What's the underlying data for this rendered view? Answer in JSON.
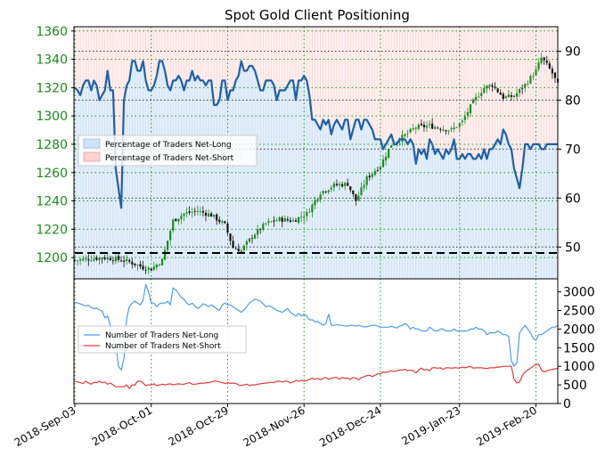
{
  "chart_data": {
    "title": "Spot Gold Client Positioning",
    "type": "line",
    "x_tick_labels": [
      "2018-Sep-03",
      "2018-Oct-01",
      "2018-Oct-29",
      "2018-Nov-26",
      "2018-Dec-24",
      "2019-Jan-23",
      "2019-Feb-20"
    ],
    "upper": {
      "price_axis": {
        "side": "left",
        "ylim": [
          1185,
          1363
        ],
        "ticks": [
          "1200",
          "1220",
          "1240",
          "1260",
          "1280",
          "1300",
          "1320",
          "1340",
          "1360"
        ]
      },
      "pct_axis": {
        "side": "right",
        "ylim": [
          43.5,
          95
        ],
        "ticks": [
          "50",
          "60",
          "70",
          "80",
          "90"
        ]
      },
      "reference_line": 50,
      "legend": {
        "placement": "upper-left",
        "entries": [
          "Percentage of Traders Net-Long",
          "Percentage of Traders Net-Short"
        ]
      },
      "price_series": {
        "name": "Spot Gold",
        "type": "candlestick",
        "approx_close_path": [
          [
            0,
            1198
          ],
          [
            5,
            1199
          ],
          [
            10,
            1200
          ],
          [
            15,
            1199
          ],
          [
            20,
            1197
          ],
          [
            25,
            1193
          ],
          [
            28,
            1192
          ],
          [
            32,
            1198
          ],
          [
            36,
            1226
          ],
          [
            40,
            1231
          ],
          [
            45,
            1233
          ],
          [
            50,
            1230
          ],
          [
            55,
            1223
          ],
          [
            58,
            1207
          ],
          [
            61,
            1205
          ],
          [
            65,
            1215
          ],
          [
            70,
            1224
          ],
          [
            75,
            1227
          ],
          [
            80,
            1226
          ],
          [
            85,
            1231
          ],
          [
            90,
            1246
          ],
          [
            95,
            1251
          ],
          [
            100,
            1252
          ],
          [
            103,
            1240
          ],
          [
            107,
            1256
          ],
          [
            112,
            1265
          ],
          [
            116,
            1280
          ],
          [
            120,
            1285
          ],
          [
            125,
            1292
          ],
          [
            130,
            1293
          ],
          [
            135,
            1291
          ],
          [
            138,
            1290
          ],
          [
            142,
            1296
          ],
          [
            146,
            1310
          ],
          [
            150,
            1320
          ],
          [
            153,
            1322
          ],
          [
            157,
            1313
          ],
          [
            161,
            1314
          ],
          [
            165,
            1322
          ],
          [
            169,
            1332
          ],
          [
            171,
            1341
          ],
          [
            173,
            1336
          ],
          [
            175,
            1330
          ],
          [
            177,
            1322
          ]
        ]
      },
      "pct_net_long": {
        "name": "Percentage of Traders Net-Long",
        "x": [
          0,
          1,
          2,
          3,
          4,
          5,
          6,
          7,
          8,
          9,
          10,
          11,
          12,
          13,
          14,
          15,
          16,
          17,
          18,
          19,
          20,
          21,
          22,
          23,
          24,
          25,
          26,
          27,
          28,
          29,
          30,
          31,
          32,
          33,
          34,
          35,
          36,
          37,
          38,
          39,
          40,
          41,
          42,
          43,
          44,
          45,
          46,
          47,
          48,
          49,
          50,
          51,
          52,
          53,
          54,
          55,
          56,
          57,
          58,
          59,
          60,
          61,
          62,
          63,
          64,
          65,
          66,
          67,
          68,
          69,
          70,
          71,
          72,
          73,
          74,
          75,
          76,
          77,
          78,
          79,
          80,
          81,
          82,
          83,
          84,
          85,
          86,
          87,
          88,
          89,
          90,
          91,
          92,
          93,
          94,
          95,
          96,
          97,
          98,
          99,
          100,
          101,
          102,
          103,
          104,
          105,
          106,
          107,
          108,
          109,
          110,
          111,
          112,
          113,
          114,
          115,
          116,
          117,
          118,
          119,
          120,
          121,
          122,
          123,
          124,
          125,
          126,
          127,
          128,
          129,
          130,
          131,
          132,
          133,
          134,
          135,
          136,
          137,
          138,
          139,
          140,
          141,
          142,
          143,
          144,
          145,
          146,
          147,
          148,
          149,
          150,
          151,
          152,
          153,
          154,
          155,
          156,
          157,
          158,
          159,
          160,
          161,
          162,
          163,
          164,
          165,
          166,
          167,
          168,
          169,
          170,
          171,
          172,
          173,
          174,
          175,
          176,
          177
        ],
        "values": [
          82.5,
          82,
          81,
          83,
          84,
          84,
          82,
          84,
          83,
          80,
          81,
          82,
          86,
          82,
          82,
          66,
          62,
          58,
          80,
          83,
          84,
          88,
          88,
          86,
          86,
          88,
          84,
          82,
          82,
          83,
          85,
          88,
          88,
          86,
          83,
          82,
          84,
          84,
          85,
          84,
          82,
          84,
          84,
          86,
          84,
          85,
          84,
          84,
          83,
          84,
          84,
          79,
          79,
          80,
          84,
          84,
          80,
          82,
          82,
          84,
          85,
          88,
          86,
          86,
          87,
          87,
          86,
          84,
          82,
          82,
          84,
          84,
          84,
          83,
          80,
          82,
          82,
          82,
          83,
          84,
          84,
          80,
          84,
          84,
          85,
          84,
          81,
          76,
          76,
          75,
          74,
          76,
          75,
          76,
          73,
          75,
          76,
          75,
          74,
          76,
          76,
          72,
          74,
          76,
          76,
          74,
          76,
          76,
          75,
          74,
          72,
          72,
          72,
          70,
          71,
          72,
          73,
          71,
          71,
          72,
          72,
          72,
          71,
          72,
          71,
          67,
          70,
          69,
          70,
          68,
          72,
          71,
          69,
          70,
          69,
          68,
          70,
          69,
          70,
          72,
          68,
          68,
          69,
          68,
          69,
          69,
          68,
          68,
          69,
          68,
          70,
          68,
          70,
          70,
          71,
          72,
          71,
          74,
          73,
          71,
          70,
          66,
          64,
          62,
          66,
          71,
          71,
          70,
          71,
          71,
          71,
          70,
          70,
          71,
          71,
          71,
          71,
          71
        ]
      }
    },
    "lower": {
      "ylim": [
        0,
        3350
      ],
      "ticks": [
        "0",
        "500",
        "1000",
        "1500",
        "2000",
        "2500",
        "3000"
      ],
      "legend": {
        "placement": "center-left",
        "entries": [
          "Number of Traders Net-Long",
          "Number of Traders Net-Short"
        ]
      },
      "net_long": {
        "name": "Number of Traders Net-Long",
        "color": "#4a9ee8",
        "values": [
          2720,
          2700,
          2680,
          2650,
          2620,
          2640,
          2580,
          2550,
          2560,
          2520,
          2480,
          2300,
          2350,
          2100,
          1700,
          1600,
          1000,
          900,
          1200,
          2300,
          2600,
          2700,
          2750,
          2700,
          2650,
          2780,
          3200,
          3000,
          2700,
          2700,
          2600,
          2680,
          2700,
          2700,
          2750,
          2650,
          3100,
          3050,
          2950,
          2850,
          2800,
          2700,
          2650,
          2700,
          2620,
          2550,
          2600,
          2680,
          2650,
          2600,
          2650,
          2600,
          2550,
          2500,
          2650,
          2700,
          2650,
          2650,
          2600,
          2550,
          2500,
          2450,
          2520,
          2600,
          2700,
          2750,
          2800,
          2780,
          2750,
          2680,
          2600,
          2620,
          2600,
          2550,
          2500,
          2480,
          2450,
          2500,
          2550,
          2450,
          2400,
          2350,
          2420,
          2350,
          2400,
          2350,
          2250,
          2250,
          2200,
          2200,
          2150,
          2100,
          2150,
          2400,
          2100,
          2100,
          2120,
          2100,
          2100,
          2080,
          2080,
          2100,
          2100,
          2080,
          2100,
          2080,
          2060,
          2060,
          2080,
          2100,
          2100,
          2080,
          2050,
          2050,
          2050,
          2050,
          2080,
          2050,
          2030,
          2080,
          2100,
          2150,
          2100,
          2000,
          2050,
          2000,
          2000,
          1950,
          1950,
          1950,
          2050,
          2000,
          1950,
          1950,
          2000,
          2000,
          1950,
          1950,
          1950,
          2000,
          1950,
          1950,
          1950,
          1950,
          1950,
          2000,
          2000,
          2050,
          2000,
          2000,
          1950,
          1850,
          1900,
          1900,
          1900,
          1950,
          1900,
          1850,
          1850,
          1800,
          1150,
          1000,
          1100,
          1900,
          2000,
          2100,
          2000,
          1900,
          1750,
          1700,
          1850,
          1850,
          1900,
          1950,
          2000,
          2050,
          2050,
          2100
        ]
      },
      "net_short": {
        "name": "Number of Traders Net-Short",
        "color": "#e03a3a",
        "values": [
          600,
          580,
          560,
          540,
          600,
          550,
          520,
          570,
          560,
          600,
          560,
          580,
          520,
          550,
          500,
          450,
          450,
          450,
          450,
          500,
          400,
          500,
          500,
          600,
          600,
          550,
          480,
          500,
          500,
          530,
          480,
          500,
          520,
          500,
          520,
          530,
          500,
          520,
          530,
          520,
          520,
          540,
          560,
          520,
          520,
          530,
          550,
          540,
          560,
          560,
          580,
          600,
          600,
          580,
          560,
          540,
          560,
          540,
          550,
          540,
          500,
          480,
          500,
          520,
          480,
          500,
          500,
          520,
          530,
          540,
          550,
          560,
          570,
          560,
          600,
          600,
          580,
          600,
          600,
          550,
          580,
          620,
          600,
          620,
          600,
          620,
          650,
          680,
          650,
          680,
          640,
          680,
          700,
          650,
          680,
          700,
          700,
          650,
          700,
          680,
          680,
          650,
          700,
          680,
          640,
          700,
          720,
          750,
          760,
          720,
          760,
          800,
          800,
          850,
          830,
          860,
          880,
          860,
          880,
          900,
          900,
          920,
          880,
          900,
          880,
          820,
          900,
          950,
          900,
          920,
          880,
          960,
          960,
          950,
          960,
          920,
          960,
          960,
          950,
          960,
          960,
          950,
          980,
          960,
          980,
          1000,
          950,
          960,
          960,
          960,
          950,
          940,
          960,
          960,
          960,
          980,
          980,
          1000,
          1000,
          1000,
          1000,
          650,
          550,
          580,
          750,
          850,
          900,
          950,
          1000,
          1050,
          1050,
          900,
          850,
          880,
          900,
          920,
          930,
          950
        ]
      }
    }
  }
}
